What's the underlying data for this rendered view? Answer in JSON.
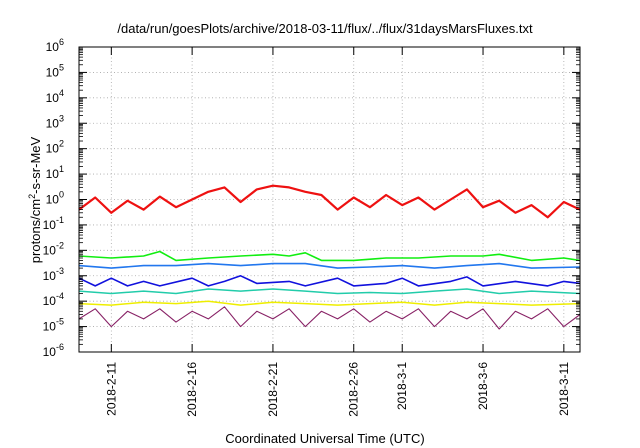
{
  "chart_data": {
    "type": "line",
    "title": "/data/run/goesPlots/archive/2018-03-11/flux/../flux/31daysMarsFluxes.txt",
    "xlabel": "Coordinated Universal Time (UTC)",
    "ylabel": "protons/cm²-s-sr-MeV",
    "yscale": "log",
    "ylim_exp": [
      -6,
      6
    ],
    "y_tick_exponents": [
      -6,
      -5,
      -4,
      -3,
      -2,
      -1,
      0,
      1,
      2,
      3,
      4,
      5,
      6
    ],
    "xlim": [
      "2018-02-09",
      "2018-03-12"
    ],
    "x_ticks": [
      "2018-2-11",
      "2018-2-16",
      "2018-2-21",
      "2018-2-26",
      "2018-3-1",
      "2018-3-6",
      "2018-3-11"
    ],
    "grid": true,
    "series": [
      {
        "color": "#ee1111",
        "width": 2.2,
        "points": [
          [
            "2018-02-09",
            0.4
          ],
          [
            "2018-02-10",
            1.2
          ],
          [
            "2018-02-11",
            0.3
          ],
          [
            "2018-02-12",
            0.9
          ],
          [
            "2018-02-13",
            0.4
          ],
          [
            "2018-02-14",
            1.3
          ],
          [
            "2018-02-15",
            0.5
          ],
          [
            "2018-02-16",
            1.0
          ],
          [
            "2018-02-17",
            2.0
          ],
          [
            "2018-02-18",
            3.0
          ],
          [
            "2018-02-19",
            0.8
          ],
          [
            "2018-02-20",
            2.5
          ],
          [
            "2018-02-21",
            3.5
          ],
          [
            "2018-02-22",
            3.0
          ],
          [
            "2018-02-23",
            2.0
          ],
          [
            "2018-02-24",
            1.5
          ],
          [
            "2018-02-25",
            0.4
          ],
          [
            "2018-02-26",
            1.2
          ],
          [
            "2018-02-27",
            0.5
          ],
          [
            "2018-02-28",
            1.5
          ],
          [
            "2018-03-01",
            0.6
          ],
          [
            "2018-03-02",
            1.2
          ],
          [
            "2018-03-03",
            0.4
          ],
          [
            "2018-03-04",
            1.0
          ],
          [
            "2018-03-05",
            2.5
          ],
          [
            "2018-03-06",
            0.5
          ],
          [
            "2018-03-07",
            0.9
          ],
          [
            "2018-03-08",
            0.3
          ],
          [
            "2018-03-09",
            0.6
          ],
          [
            "2018-03-10",
            0.2
          ],
          [
            "2018-03-11",
            0.8
          ],
          [
            "2018-03-12",
            0.4
          ]
        ]
      },
      {
        "color": "#11ee11",
        "width": 1.6,
        "points": [
          [
            "2018-02-09",
            0.006
          ],
          [
            "2018-02-11",
            0.005
          ],
          [
            "2018-02-13",
            0.006
          ],
          [
            "2018-02-14",
            0.009
          ],
          [
            "2018-02-15",
            0.004
          ],
          [
            "2018-02-17",
            0.005
          ],
          [
            "2018-02-19",
            0.006
          ],
          [
            "2018-02-21",
            0.007
          ],
          [
            "2018-02-22",
            0.006
          ],
          [
            "2018-02-23",
            0.008
          ],
          [
            "2018-02-24",
            0.004
          ],
          [
            "2018-02-26",
            0.004
          ],
          [
            "2018-02-28",
            0.005
          ],
          [
            "2018-03-02",
            0.005
          ],
          [
            "2018-03-04",
            0.006
          ],
          [
            "2018-03-06",
            0.006
          ],
          [
            "2018-03-07",
            0.007
          ],
          [
            "2018-03-09",
            0.004
          ],
          [
            "2018-03-11",
            0.005
          ],
          [
            "2018-03-12",
            0.004
          ]
        ]
      },
      {
        "color": "#2277ee",
        "width": 1.6,
        "points": [
          [
            "2018-02-09",
            0.0025
          ],
          [
            "2018-02-11",
            0.002
          ],
          [
            "2018-02-13",
            0.0025
          ],
          [
            "2018-02-15",
            0.0025
          ],
          [
            "2018-02-17",
            0.003
          ],
          [
            "2018-02-19",
            0.0025
          ],
          [
            "2018-02-21",
            0.003
          ],
          [
            "2018-02-23",
            0.003
          ],
          [
            "2018-02-25",
            0.002
          ],
          [
            "2018-02-27",
            0.0022
          ],
          [
            "2018-03-01",
            0.0025
          ],
          [
            "2018-03-03",
            0.002
          ],
          [
            "2018-03-05",
            0.0025
          ],
          [
            "2018-03-07",
            0.003
          ],
          [
            "2018-03-09",
            0.002
          ],
          [
            "2018-03-12",
            0.0022
          ]
        ]
      },
      {
        "color": "#1111dd",
        "width": 1.6,
        "points": [
          [
            "2018-02-09",
            0.0008
          ],
          [
            "2018-02-10",
            0.0004
          ],
          [
            "2018-02-11",
            0.0008
          ],
          [
            "2018-02-12",
            0.0004
          ],
          [
            "2018-02-13",
            0.0006
          ],
          [
            "2018-02-14",
            0.0004
          ],
          [
            "2018-02-16",
            0.0008
          ],
          [
            "2018-02-17",
            0.0004
          ],
          [
            "2018-02-18",
            0.0006
          ],
          [
            "2018-02-19",
            0.001
          ],
          [
            "2018-02-20",
            0.0005
          ],
          [
            "2018-02-22",
            0.0006
          ],
          [
            "2018-02-23",
            0.0004
          ],
          [
            "2018-02-25",
            0.0008
          ],
          [
            "2018-02-26",
            0.0004
          ],
          [
            "2018-02-28",
            0.0005
          ],
          [
            "2018-03-01",
            0.0008
          ],
          [
            "2018-03-02",
            0.0004
          ],
          [
            "2018-03-04",
            0.0006
          ],
          [
            "2018-03-05",
            0.0009
          ],
          [
            "2018-03-06",
            0.0004
          ],
          [
            "2018-03-08",
            0.0006
          ],
          [
            "2018-03-10",
            0.0004
          ],
          [
            "2018-03-11",
            0.0006
          ],
          [
            "2018-03-12",
            0.0005
          ]
        ]
      },
      {
        "color": "#22ccaa",
        "width": 1.5,
        "points": [
          [
            "2018-02-09",
            0.00025
          ],
          [
            "2018-02-11",
            0.0002
          ],
          [
            "2018-02-13",
            0.00025
          ],
          [
            "2018-02-15",
            0.0002
          ],
          [
            "2018-02-17",
            0.0003
          ],
          [
            "2018-02-19",
            0.00025
          ],
          [
            "2018-02-21",
            0.0003
          ],
          [
            "2018-02-23",
            0.00025
          ],
          [
            "2018-02-25",
            0.0002
          ],
          [
            "2018-02-27",
            0.00022
          ],
          [
            "2018-03-01",
            0.0002
          ],
          [
            "2018-03-03",
            0.00025
          ],
          [
            "2018-03-05",
            0.0003
          ],
          [
            "2018-03-07",
            0.0002
          ],
          [
            "2018-03-09",
            0.00025
          ],
          [
            "2018-03-12",
            0.0002
          ]
        ]
      },
      {
        "color": "#eeee00",
        "width": 1.5,
        "points": [
          [
            "2018-02-09",
            8e-05
          ],
          [
            "2018-02-11",
            7e-05
          ],
          [
            "2018-02-13",
            9e-05
          ],
          [
            "2018-02-15",
            8e-05
          ],
          [
            "2018-02-17",
            0.0001
          ],
          [
            "2018-02-19",
            7e-05
          ],
          [
            "2018-02-21",
            9e-05
          ],
          [
            "2018-02-23",
            8e-05
          ],
          [
            "2018-02-25",
            7e-05
          ],
          [
            "2018-02-27",
            8e-05
          ],
          [
            "2018-03-01",
            9e-05
          ],
          [
            "2018-03-03",
            7e-05
          ],
          [
            "2018-03-05",
            9e-05
          ],
          [
            "2018-03-07",
            8e-05
          ],
          [
            "2018-03-09",
            7e-05
          ],
          [
            "2018-03-12",
            8e-05
          ]
        ]
      },
      {
        "color": "#882266",
        "width": 1.1,
        "points": [
          [
            "2018-02-09",
            2e-05
          ],
          [
            "2018-02-10",
            5e-05
          ],
          [
            "2018-02-11",
            1e-05
          ],
          [
            "2018-02-12",
            4e-05
          ],
          [
            "2018-02-13",
            2e-05
          ],
          [
            "2018-02-14",
            5e-05
          ],
          [
            "2018-02-15",
            1.5e-05
          ],
          [
            "2018-02-16",
            4e-05
          ],
          [
            "2018-02-17",
            2e-05
          ],
          [
            "2018-02-18",
            6e-05
          ],
          [
            "2018-02-19",
            1e-05
          ],
          [
            "2018-02-20",
            4e-05
          ],
          [
            "2018-02-21",
            2e-05
          ],
          [
            "2018-02-22",
            5e-05
          ],
          [
            "2018-02-23",
            1e-05
          ],
          [
            "2018-02-24",
            4e-05
          ],
          [
            "2018-02-25",
            2e-05
          ],
          [
            "2018-02-26",
            5e-05
          ],
          [
            "2018-02-27",
            1.5e-05
          ],
          [
            "2018-02-28",
            4e-05
          ],
          [
            "2018-03-01",
            2e-05
          ],
          [
            "2018-03-02",
            5e-05
          ],
          [
            "2018-03-03",
            1e-05
          ],
          [
            "2018-03-04",
            4e-05
          ],
          [
            "2018-03-05",
            2e-05
          ],
          [
            "2018-03-06",
            5e-05
          ],
          [
            "2018-03-07",
            8e-06
          ],
          [
            "2018-03-08",
            4e-05
          ],
          [
            "2018-03-09",
            2e-05
          ],
          [
            "2018-03-10",
            5e-05
          ],
          [
            "2018-03-11",
            1e-05
          ],
          [
            "2018-03-12",
            3e-05
          ]
        ]
      }
    ]
  }
}
